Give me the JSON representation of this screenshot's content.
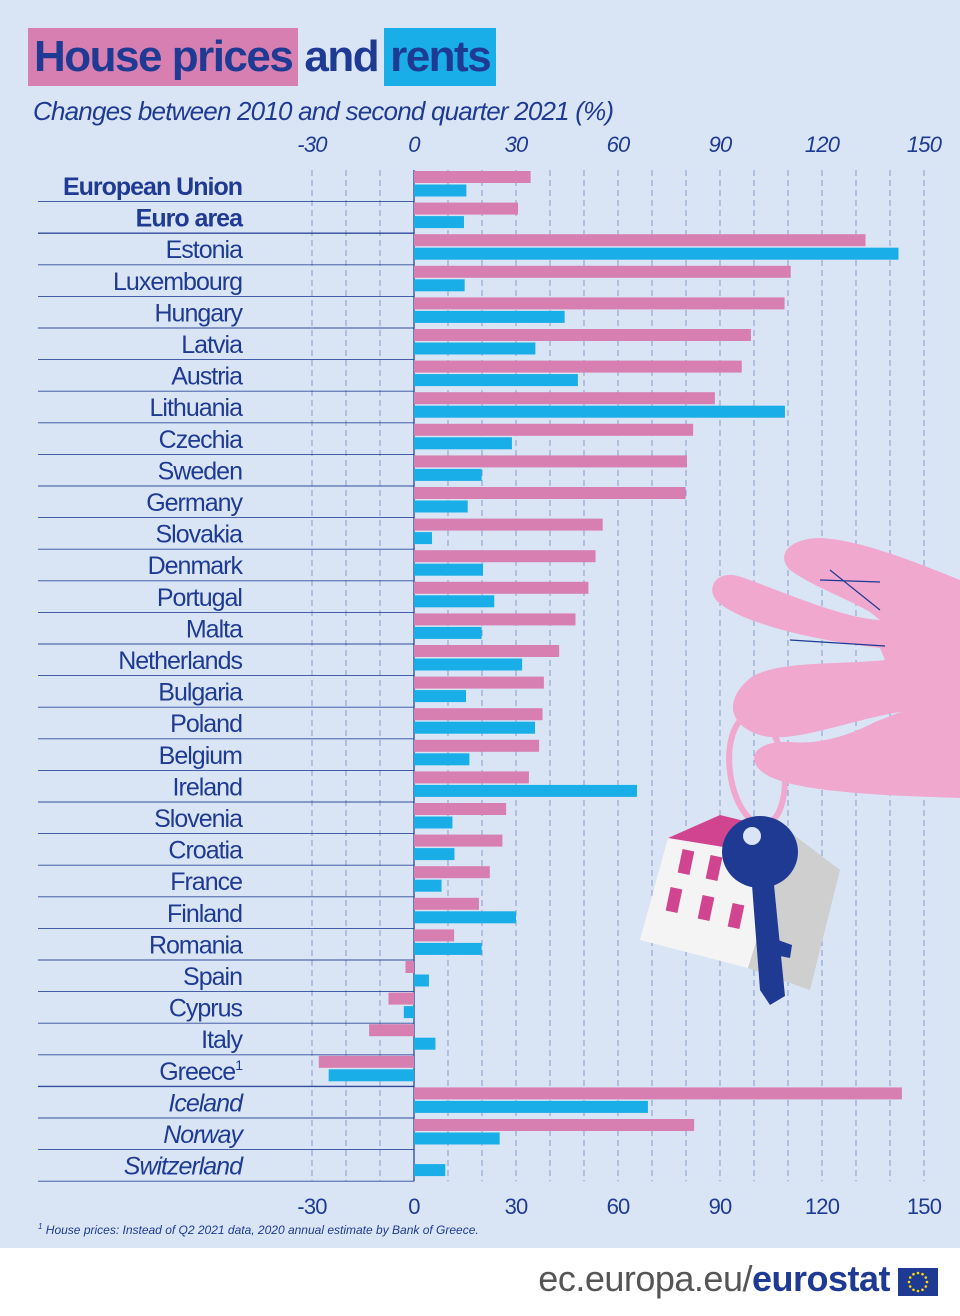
{
  "title": {
    "part1": "House prices",
    "part2": "and",
    "part3": "rents"
  },
  "subtitle": "Changes between 2010 and second quarter 2021 (%)",
  "footnote": {
    "marker": "1",
    "text": "House prices: Instead of Q2 2021 data, 2020 annual estimate by Bank of Greece."
  },
  "footer": {
    "domain": "ec.europa.eu/",
    "brand": "eurostat"
  },
  "colors": {
    "house_prices": "#d87fb2",
    "rents": "#1aaee8",
    "text": "#1f3a93",
    "background": "#d9e5f5"
  },
  "icons": [
    "hand-icon",
    "key-icon",
    "house-icon",
    "eu-flag-icon"
  ],
  "chart_data": {
    "type": "bar",
    "orientation": "horizontal",
    "xlim": [
      -30,
      150
    ],
    "ticks": [
      -30,
      0,
      30,
      60,
      90,
      120,
      150
    ],
    "tick_labels": [
      "-30",
      "0",
      "30",
      "60",
      "90",
      "120",
      "150"
    ],
    "grid": true,
    "legend": "none",
    "categories": [
      "European Union",
      "Euro area",
      "Estonia",
      "Luxembourg",
      "Hungary",
      "Latvia",
      "Austria",
      "Lithuania",
      "Czechia",
      "Sweden",
      "Germany",
      "Slovakia",
      "Denmark",
      "Portugal",
      "Malta",
      "Netherlands",
      "Bulgaria",
      "Poland",
      "Belgium",
      "Ireland",
      "Slovenia",
      "Croatia",
      "France",
      "Finland",
      "Romania",
      "Spain",
      "Cyprus",
      "Italy",
      "Greece",
      "Iceland",
      "Norway",
      "Switzerland"
    ],
    "category_style": [
      "bold",
      "bold",
      "normal",
      "normal",
      "normal",
      "normal",
      "normal",
      "normal",
      "normal",
      "normal",
      "normal",
      "normal",
      "normal",
      "normal",
      "normal",
      "normal",
      "normal",
      "normal",
      "normal",
      "normal",
      "normal",
      "normal",
      "normal",
      "normal",
      "normal",
      "normal",
      "normal",
      "normal",
      "normal",
      "italic",
      "italic",
      "italic"
    ],
    "series": [
      {
        "values": [
          34.3,
          30.6,
          132.8,
          110.8,
          109.0,
          99.1,
          96.4,
          88.5,
          82.1,
          80.3,
          79.9,
          55.5,
          53.4,
          51.3,
          47.5,
          42.7,
          38.2,
          37.8,
          36.8,
          33.8,
          27.1,
          26.0,
          22.3,
          19.1,
          11.8,
          -2.5,
          -7.5,
          -13.2,
          -28.0,
          143.5,
          82.4,
          null
        ]
      },
      {
        "values": [
          15.4,
          14.7,
          142.5,
          14.9,
          44.3,
          35.7,
          48.2,
          109.1,
          28.8,
          19.9,
          15.8,
          5.3,
          20.3,
          23.6,
          19.9,
          31.8,
          15.3,
          35.6,
          16.3,
          65.6,
          11.3,
          11.9,
          8.1,
          30.0,
          19.9,
          4.4,
          -3.0,
          6.3,
          -25.1,
          68.8,
          25.2,
          9.2
        ]
      }
    ]
  }
}
